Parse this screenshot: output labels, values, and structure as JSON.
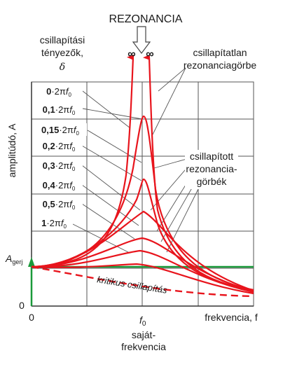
{
  "title": "REZONANCIA",
  "infinity_symbols": [
    "∞",
    "∞"
  ],
  "damping_label": {
    "line1": "csillapítási",
    "line2": "tényezők,",
    "symbol": "δ"
  },
  "undamped_label": {
    "line1": "csillapítatlan",
    "line2": "rezonanciagörbe"
  },
  "damped_label": {
    "line1": "csillapított",
    "line2": "rezonancia-",
    "line3": "görbék"
  },
  "y_axis_label": "amplitúdó, A",
  "x_axis_label": "frekvencia, f",
  "origin_y": "0",
  "origin_x": "0",
  "f0_label": "f",
  "f0_sub": "0",
  "natural_freq_label": {
    "line1": "saját-",
    "line2": "frekvencia"
  },
  "a_excitation": {
    "main": "A",
    "sub": "gerj"
  },
  "critical_label": "kritikus csillapítás",
  "coefficients": [
    {
      "bold": "0",
      "rest": "·2π",
      "f": "f",
      "sub": "0"
    },
    {
      "bold": "0,1",
      "rest": "·2π",
      "f": "f",
      "sub": "0"
    },
    {
      "bold": "0,15",
      "rest": "·2π",
      "f": "f",
      "sub": "0"
    },
    {
      "bold": "0,2",
      "rest": "·2π",
      "f": "f",
      "sub": "0"
    },
    {
      "bold": "0,3",
      "rest": "·2π",
      "f": "f",
      "sub": "0"
    },
    {
      "bold": "0,4",
      "rest": "·2π",
      "f": "f",
      "sub": "0"
    },
    {
      "bold": "0,5",
      "rest": "·2π",
      "f": "f",
      "sub": "0"
    },
    {
      "bold": "1",
      "rest": "·2π",
      "f": "f",
      "sub": "0"
    }
  ],
  "colors": {
    "curve": "#e8141c",
    "baseline": "#1a9a3a",
    "grid": "#555555",
    "text": "#1a1a1a"
  }
}
